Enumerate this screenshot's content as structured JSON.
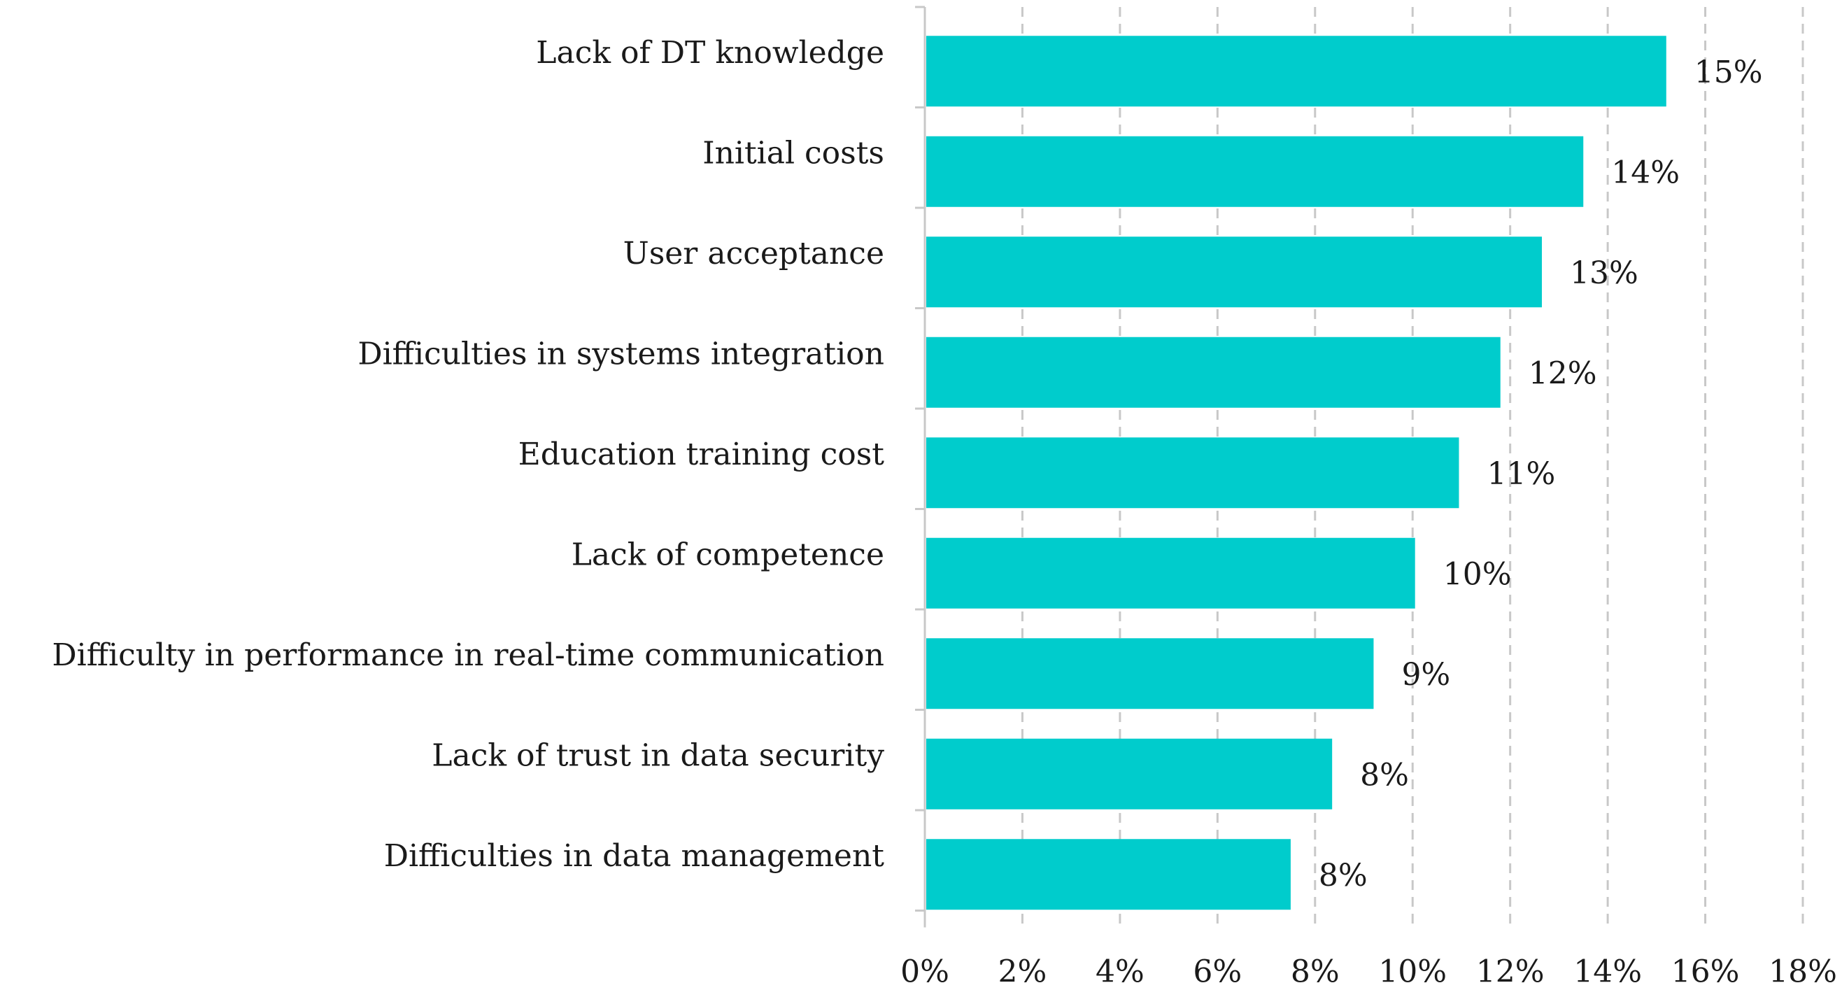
{
  "chart_data": {
    "type": "bar",
    "orientation": "horizontal",
    "title": "",
    "xlabel": "",
    "ylabel": "",
    "xlim": [
      0,
      18
    ],
    "x_ticks": [
      0,
      2,
      4,
      6,
      8,
      10,
      12,
      14,
      16,
      18
    ],
    "x_tick_labels": [
      "0%",
      "2%",
      "4%",
      "6%",
      "8%",
      "10%",
      "12%",
      "14%",
      "16%",
      "18%"
    ],
    "grid": "vertical dashed",
    "bar_color": "#00CCCC",
    "categories": [
      "Lack of DT knowledge",
      "Initial costs",
      "User acceptance",
      "Difficulties in systems integration",
      "Education training cost",
      "Lack of competence",
      "Difficulty in performance in real-time communication",
      "Lack of trust in data security",
      "Difficulties in data management"
    ],
    "values": [
      15.2,
      13.5,
      12.65,
      11.8,
      10.95,
      10.05,
      9.2,
      8.35,
      7.5
    ],
    "data_labels": [
      "15%",
      "14%",
      "13%",
      "12%",
      "11%",
      "10%",
      "9%",
      "8%",
      "8%"
    ]
  }
}
